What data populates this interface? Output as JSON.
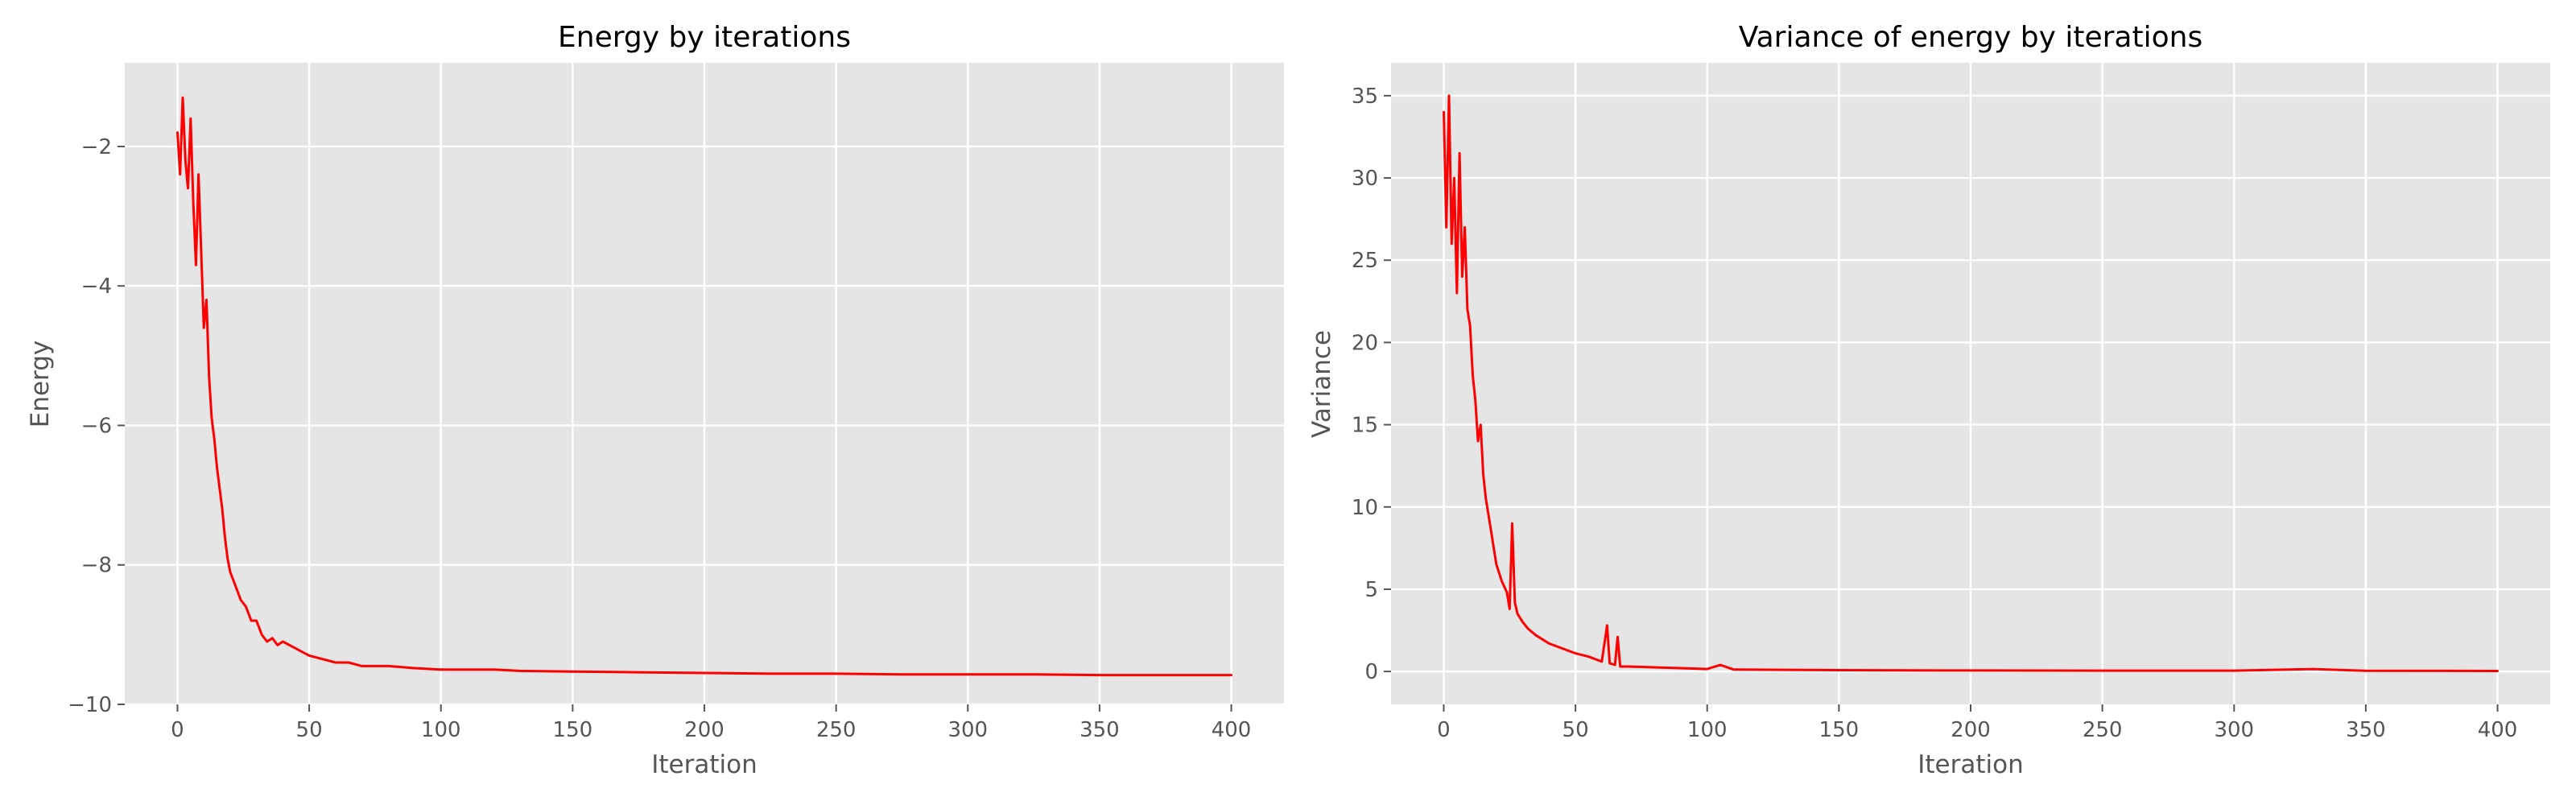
{
  "chart_data": [
    {
      "type": "line",
      "title": "Energy by iterations",
      "xlabel": "Iteration",
      "ylabel": "Energy",
      "xlim": [
        -20,
        420
      ],
      "ylim": [
        -10,
        -0.8
      ],
      "xticks": [
        0,
        50,
        100,
        150,
        200,
        250,
        300,
        350,
        400
      ],
      "yticks": [
        -10,
        -8,
        -6,
        -4,
        -2
      ],
      "yticklabels": [
        "−10",
        "−8",
        "−6",
        "−4",
        "−2"
      ],
      "grid": true,
      "color": "#ff0000",
      "series": [
        {
          "x": [
            0,
            1,
            2,
            3,
            4,
            5,
            6,
            7,
            8,
            9,
            10,
            11,
            12,
            13,
            14,
            15,
            16,
            17,
            18,
            19,
            20,
            22,
            24,
            26,
            28,
            30,
            32,
            34,
            36,
            38,
            40,
            45,
            50,
            55,
            60,
            65,
            70,
            80,
            90,
            100,
            110,
            120,
            130,
            150,
            175,
            200,
            225,
            250,
            275,
            300,
            325,
            350,
            375,
            400
          ],
          "y": [
            -1.8,
            -2.4,
            -1.3,
            -2.2,
            -2.6,
            -1.6,
            -2.8,
            -3.7,
            -2.4,
            -3.5,
            -4.6,
            -4.2,
            -5.3,
            -5.9,
            -6.2,
            -6.6,
            -6.9,
            -7.2,
            -7.6,
            -7.9,
            -8.1,
            -8.3,
            -8.5,
            -8.6,
            -8.8,
            -8.8,
            -9.0,
            -9.1,
            -9.05,
            -9.15,
            -9.1,
            -9.2,
            -9.3,
            -9.35,
            -9.4,
            -9.4,
            -9.45,
            -9.45,
            -9.48,
            -9.5,
            -9.5,
            -9.5,
            -9.52,
            -9.53,
            -9.54,
            -9.55,
            -9.56,
            -9.56,
            -9.57,
            -9.57,
            -9.57,
            -9.58,
            -9.58,
            -9.58
          ]
        }
      ]
    },
    {
      "type": "line",
      "title": "Variance of energy by iterations",
      "xlabel": "Iteration",
      "ylabel": "Variance",
      "xlim": [
        -20,
        420
      ],
      "ylim": [
        -2,
        37
      ],
      "xticks": [
        0,
        50,
        100,
        150,
        200,
        250,
        300,
        350,
        400
      ],
      "yticks": [
        0,
        5,
        10,
        15,
        20,
        25,
        30,
        35
      ],
      "yticklabels": [
        "0",
        "5",
        "10",
        "15",
        "20",
        "25",
        "30",
        "35"
      ],
      "grid": true,
      "color": "#ff0000",
      "series": [
        {
          "x": [
            0,
            1,
            2,
            3,
            4,
            5,
            6,
            7,
            8,
            9,
            10,
            11,
            12,
            13,
            14,
            15,
            16,
            17,
            18,
            19,
            20,
            22,
            24,
            25,
            26,
            27,
            28,
            30,
            32,
            35,
            38,
            40,
            45,
            50,
            55,
            60,
            62,
            63,
            65,
            66,
            67,
            70,
            80,
            90,
            100,
            105,
            110,
            130,
            150,
            175,
            200,
            250,
            300,
            330,
            350,
            400
          ],
          "y": [
            34.0,
            27.0,
            35.0,
            26.0,
            30.0,
            23.0,
            31.5,
            24.0,
            27.0,
            22.0,
            21.0,
            18.0,
            16.5,
            14.0,
            15.0,
            12.0,
            10.5,
            9.5,
            8.5,
            7.5,
            6.5,
            5.5,
            4.8,
            3.8,
            9.0,
            4.2,
            3.5,
            3.0,
            2.6,
            2.2,
            1.9,
            1.7,
            1.4,
            1.1,
            0.9,
            0.6,
            2.8,
            0.5,
            0.4,
            2.1,
            0.3,
            0.3,
            0.25,
            0.2,
            0.15,
            0.4,
            0.12,
            0.1,
            0.08,
            0.07,
            0.06,
            0.05,
            0.05,
            0.15,
            0.04,
            0.03
          ]
        }
      ]
    }
  ]
}
